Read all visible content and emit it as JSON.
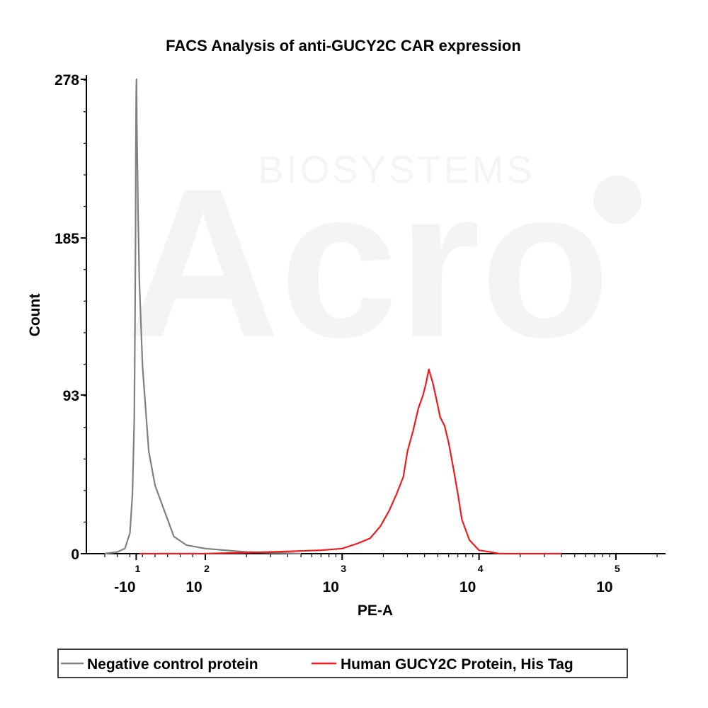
{
  "chart_data": {
    "type": "line",
    "title": "FACS Analysis of anti-GUCY2C CAR expression",
    "xlabel": "PE-A",
    "ylabel": "Count",
    "xscale": "biexponential (log above 10)",
    "ylim": [
      0,
      278
    ],
    "yticks": [
      {
        "value": 0,
        "label": "0"
      },
      {
        "value": 93,
        "label": "93"
      },
      {
        "value": 185,
        "label": "185"
      },
      {
        "value": 278,
        "label": "278"
      }
    ],
    "xticks": [
      {
        "value": -10,
        "base": "-10",
        "exp": "1"
      },
      {
        "value": 100,
        "base": "10",
        "exp": "2"
      },
      {
        "value": 1000,
        "base": "10",
        "exp": "3"
      },
      {
        "value": 10000,
        "base": "10",
        "exp": "4"
      },
      {
        "value": 100000,
        "base": "10",
        "exp": "5"
      }
    ],
    "grid": false,
    "legend_position": "bottom",
    "series": [
      {
        "name": "Negative control protein",
        "color": "#808080",
        "points": [
          [
            -60,
            0
          ],
          [
            -40,
            1
          ],
          [
            -28,
            3
          ],
          [
            -20,
            12
          ],
          [
            -16,
            35
          ],
          [
            -13,
            80
          ],
          [
            -12,
            130
          ],
          [
            -11,
            190
          ],
          [
            -10.5,
            240
          ],
          [
            -10,
            270
          ],
          [
            -9.5,
            278
          ],
          [
            -9,
            250
          ],
          [
            -8,
            225
          ],
          [
            -7,
            200
          ],
          [
            -5,
            160
          ],
          [
            0,
            110
          ],
          [
            10,
            60
          ],
          [
            20,
            40
          ],
          [
            35,
            25
          ],
          [
            50,
            10
          ],
          [
            70,
            5
          ],
          [
            100,
            3
          ],
          [
            200,
            1
          ],
          [
            500,
            0
          ]
        ]
      },
      {
        "name": "Human GUCY2C Protein, His Tag",
        "color": "#ee1c1c",
        "points": [
          [
            -5,
            0
          ],
          [
            100,
            0
          ],
          [
            300,
            1
          ],
          [
            700,
            2
          ],
          [
            1000,
            3
          ],
          [
            1300,
            6
          ],
          [
            1600,
            9
          ],
          [
            1900,
            16
          ],
          [
            2200,
            25
          ],
          [
            2500,
            35
          ],
          [
            2800,
            45
          ],
          [
            3000,
            60
          ],
          [
            3300,
            72
          ],
          [
            3600,
            85
          ],
          [
            3900,
            93
          ],
          [
            4100,
            100
          ],
          [
            4300,
            108
          ],
          [
            4600,
            100
          ],
          [
            4900,
            90
          ],
          [
            5200,
            80
          ],
          [
            5600,
            75
          ],
          [
            6000,
            65
          ],
          [
            6500,
            50
          ],
          [
            7000,
            35
          ],
          [
            7500,
            20
          ],
          [
            8500,
            8
          ],
          [
            10000,
            2
          ],
          [
            12000,
            1
          ],
          [
            14000,
            0
          ],
          [
            40000,
            0
          ]
        ]
      }
    ]
  },
  "watermark": {
    "brand": "Acro",
    "tagline": "BIOSYSTEMS"
  }
}
